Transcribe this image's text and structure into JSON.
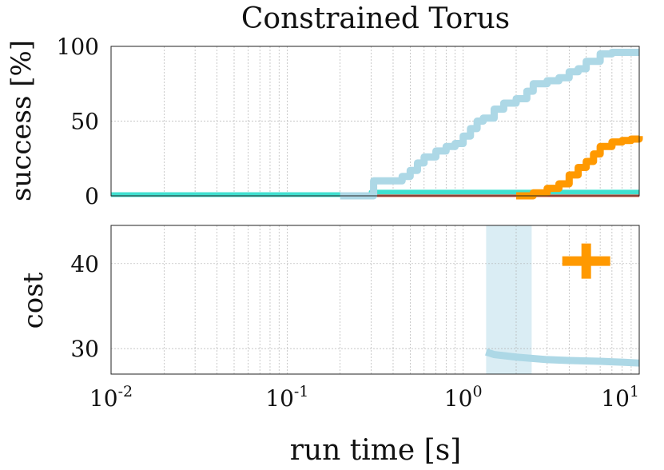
{
  "chart_data": [
    {
      "type": "line",
      "title": "Constrained Torus",
      "ylabel": "success [%]",
      "xlabel": "",
      "x_scale": "log",
      "xlim": [
        0.01,
        10
      ],
      "ylim": [
        0,
        100
      ],
      "yticks": [
        "0",
        "50",
        "100"
      ],
      "series": [
        {
          "color": "#add8e6",
          "x": [
            0.2,
            0.3,
            0.31,
            0.4,
            0.45,
            0.5,
            0.55,
            0.6,
            0.7,
            0.8,
            0.9,
            1.0,
            1.1,
            1.2,
            1.3,
            1.5,
            1.7,
            2.0,
            2.3,
            2.5,
            3.0,
            3.5,
            4.0,
            4.5,
            5.0,
            6.0,
            7.0,
            8.0,
            10.0
          ],
          "values": [
            0,
            0,
            10,
            10,
            13,
            17,
            22,
            26,
            30,
            33,
            35,
            40,
            45,
            50,
            52,
            58,
            62,
            65,
            70,
            75,
            77,
            79,
            83,
            85,
            90,
            95,
            96,
            96,
            96
          ]
        },
        {
          "color": "#ff9900",
          "x": [
            2.0,
            2.5,
            3.0,
            3.5,
            4.0,
            4.5,
            5.0,
            5.5,
            6.0,
            7.0,
            8.0,
            9.0,
            10.0
          ],
          "values": [
            0,
            2,
            5,
            8,
            14,
            19,
            23,
            28,
            33,
            36,
            37,
            38,
            40
          ]
        },
        {
          "color": "#40e0d0",
          "x": [
            0.01,
            0.25,
            0.3,
            10.0
          ],
          "values": [
            0.8,
            0.8,
            2.5,
            2.5
          ]
        },
        {
          "color": "#f2604e",
          "x": [
            0.01,
            10.0
          ],
          "values": [
            0.8,
            0.8
          ]
        }
      ]
    },
    {
      "type": "line",
      "title": "",
      "ylabel": "cost",
      "xlabel": "run time [s]",
      "x_scale": "log",
      "xlim": [
        0.01,
        10
      ],
      "ylim": [
        27,
        44.5
      ],
      "yticks": [
        "30",
        "40"
      ],
      "xticks": [
        {
          "base": "10",
          "exp": "-2"
        },
        {
          "base": "10",
          "exp": "-1"
        },
        {
          "base": "10",
          "exp": "0"
        },
        {
          "base": "10",
          "exp": "1"
        }
      ],
      "band": {
        "color": "#add8e6",
        "x_range": [
          1.35,
          2.45
        ],
        "y_range": [
          27,
          44.5
        ]
      },
      "series": [
        {
          "color": "#add8e6",
          "x": [
            1.35,
            1.5,
            2.0,
            3.0,
            4.0,
            6.0,
            8.0,
            10.0
          ],
          "values": [
            29.6,
            29.3,
            29.0,
            28.7,
            28.6,
            28.5,
            28.4,
            28.3
          ]
        }
      ],
      "markers": [
        {
          "color": "#ff9900",
          "shape": "plus",
          "x": 5.0,
          "y": 40.3
        }
      ]
    }
  ]
}
